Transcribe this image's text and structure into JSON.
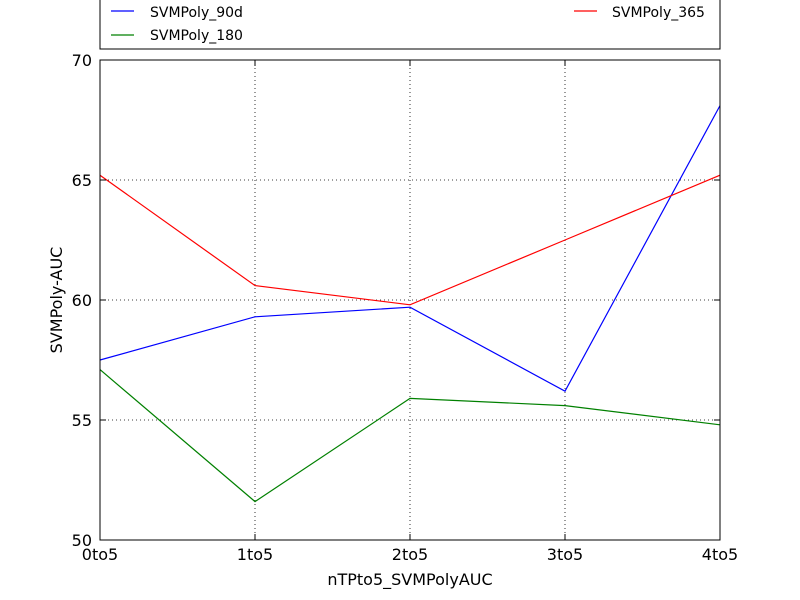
{
  "chart_data": {
    "type": "line",
    "title": "",
    "xlabel": "nTPto5_SVMPolyAUC",
    "ylabel": "SVMPoly-AUC",
    "categories": [
      "0to5",
      "1to5",
      "2to5",
      "3to5",
      "4to5"
    ],
    "ylim": [
      50,
      70
    ],
    "yticks": [
      50,
      55,
      60,
      65,
      70
    ],
    "grid": true,
    "legend": "top (above plot)",
    "series": [
      {
        "name": "SVMPoly_90d",
        "color": "#0000ff",
        "values": [
          57.5,
          59.3,
          59.7,
          56.2,
          68.1
        ]
      },
      {
        "name": "SVMPoly_180",
        "color": "#008000",
        "values": [
          57.1,
          51.6,
          55.9,
          55.6,
          54.8
        ]
      },
      {
        "name": "SVMPoly_365",
        "color": "#ff0000",
        "values": [
          65.2,
          60.6,
          59.8,
          62.5,
          65.2
        ]
      }
    ]
  }
}
